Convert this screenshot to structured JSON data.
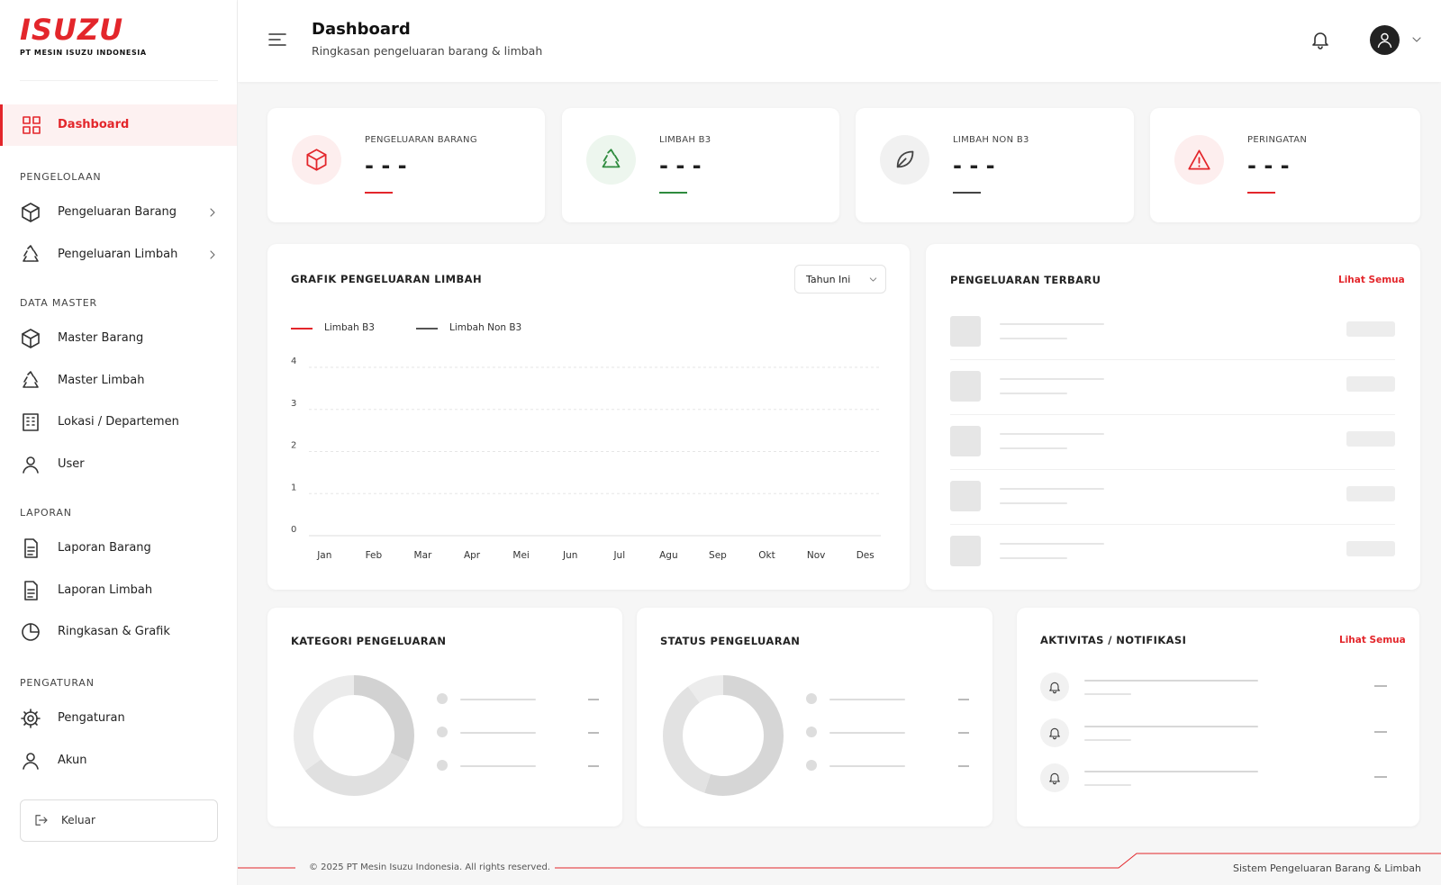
{
  "sidebar": {
    "logo": "ISUZU",
    "company": "PT MESIN ISUZU INDONESIA",
    "active": "Dashboard",
    "sections": [
      {
        "title": "PENGELOLAAN",
        "items": [
          "Pengeluaran Barang",
          "Pengeluaran Limbah"
        ]
      },
      {
        "title": "DATA MASTER",
        "items": [
          "Master Barang",
          "Master Limbah",
          "Lokasi / Departemen",
          "User"
        ]
      },
      {
        "title": "LAPORAN",
        "items": [
          "Laporan Barang",
          "Laporan Limbah",
          "Ringkasan & Grafik"
        ]
      },
      {
        "title": "PENGATURAN",
        "items": [
          "Pengaturan",
          "Akun"
        ]
      }
    ],
    "logout": "Keluar"
  },
  "header": {
    "title": "Dashboard",
    "subtitle": "Ringkasan pengeluaran barang & limbah"
  },
  "stats": [
    {
      "label": "PENGELUARAN BARANG",
      "value": "- - -",
      "color": "#e3262b"
    },
    {
      "label": "LIMBAH B3",
      "value": "- - -",
      "color": "#2e8b3e"
    },
    {
      "label": "LIMBAH NON B3",
      "value": "- - -",
      "color": "#444444"
    },
    {
      "label": "PERINGATAN",
      "value": "- - -",
      "color": "#e3262b"
    }
  ],
  "chart": {
    "title": "GRAFIK PENGELUARAN LIMBAH",
    "filter": "Tahun Ini",
    "series": [
      {
        "name": "Limbah B3",
        "color": "#e3262b"
      },
      {
        "name": "Limbah Non B3",
        "color": "#555555"
      }
    ],
    "ylim": [
      0,
      4
    ],
    "yticks": [
      0,
      1,
      2,
      3,
      4
    ],
    "categories": [
      "Jan",
      "Feb",
      "Mar",
      "Apr",
      "Mei",
      "Jun",
      "Jul",
      "Agu",
      "Sep",
      "Okt",
      "Nov",
      "Des"
    ]
  },
  "recent": {
    "title": "PENGELUARAN TERBARU",
    "link": "Lihat Semua"
  },
  "category": {
    "title": "KATEGORI PENGELUARAN"
  },
  "status": {
    "title": "STATUS PENGELUARAN"
  },
  "activity": {
    "title": "AKTIVITAS / NOTIFIKASI",
    "link": "Lihat Semua"
  },
  "footer": {
    "copyright": "© 2025 PT Mesin Isuzu Indonesia. All rights reserved.",
    "system": "Sistem Pengeluaran Barang & Limbah"
  }
}
